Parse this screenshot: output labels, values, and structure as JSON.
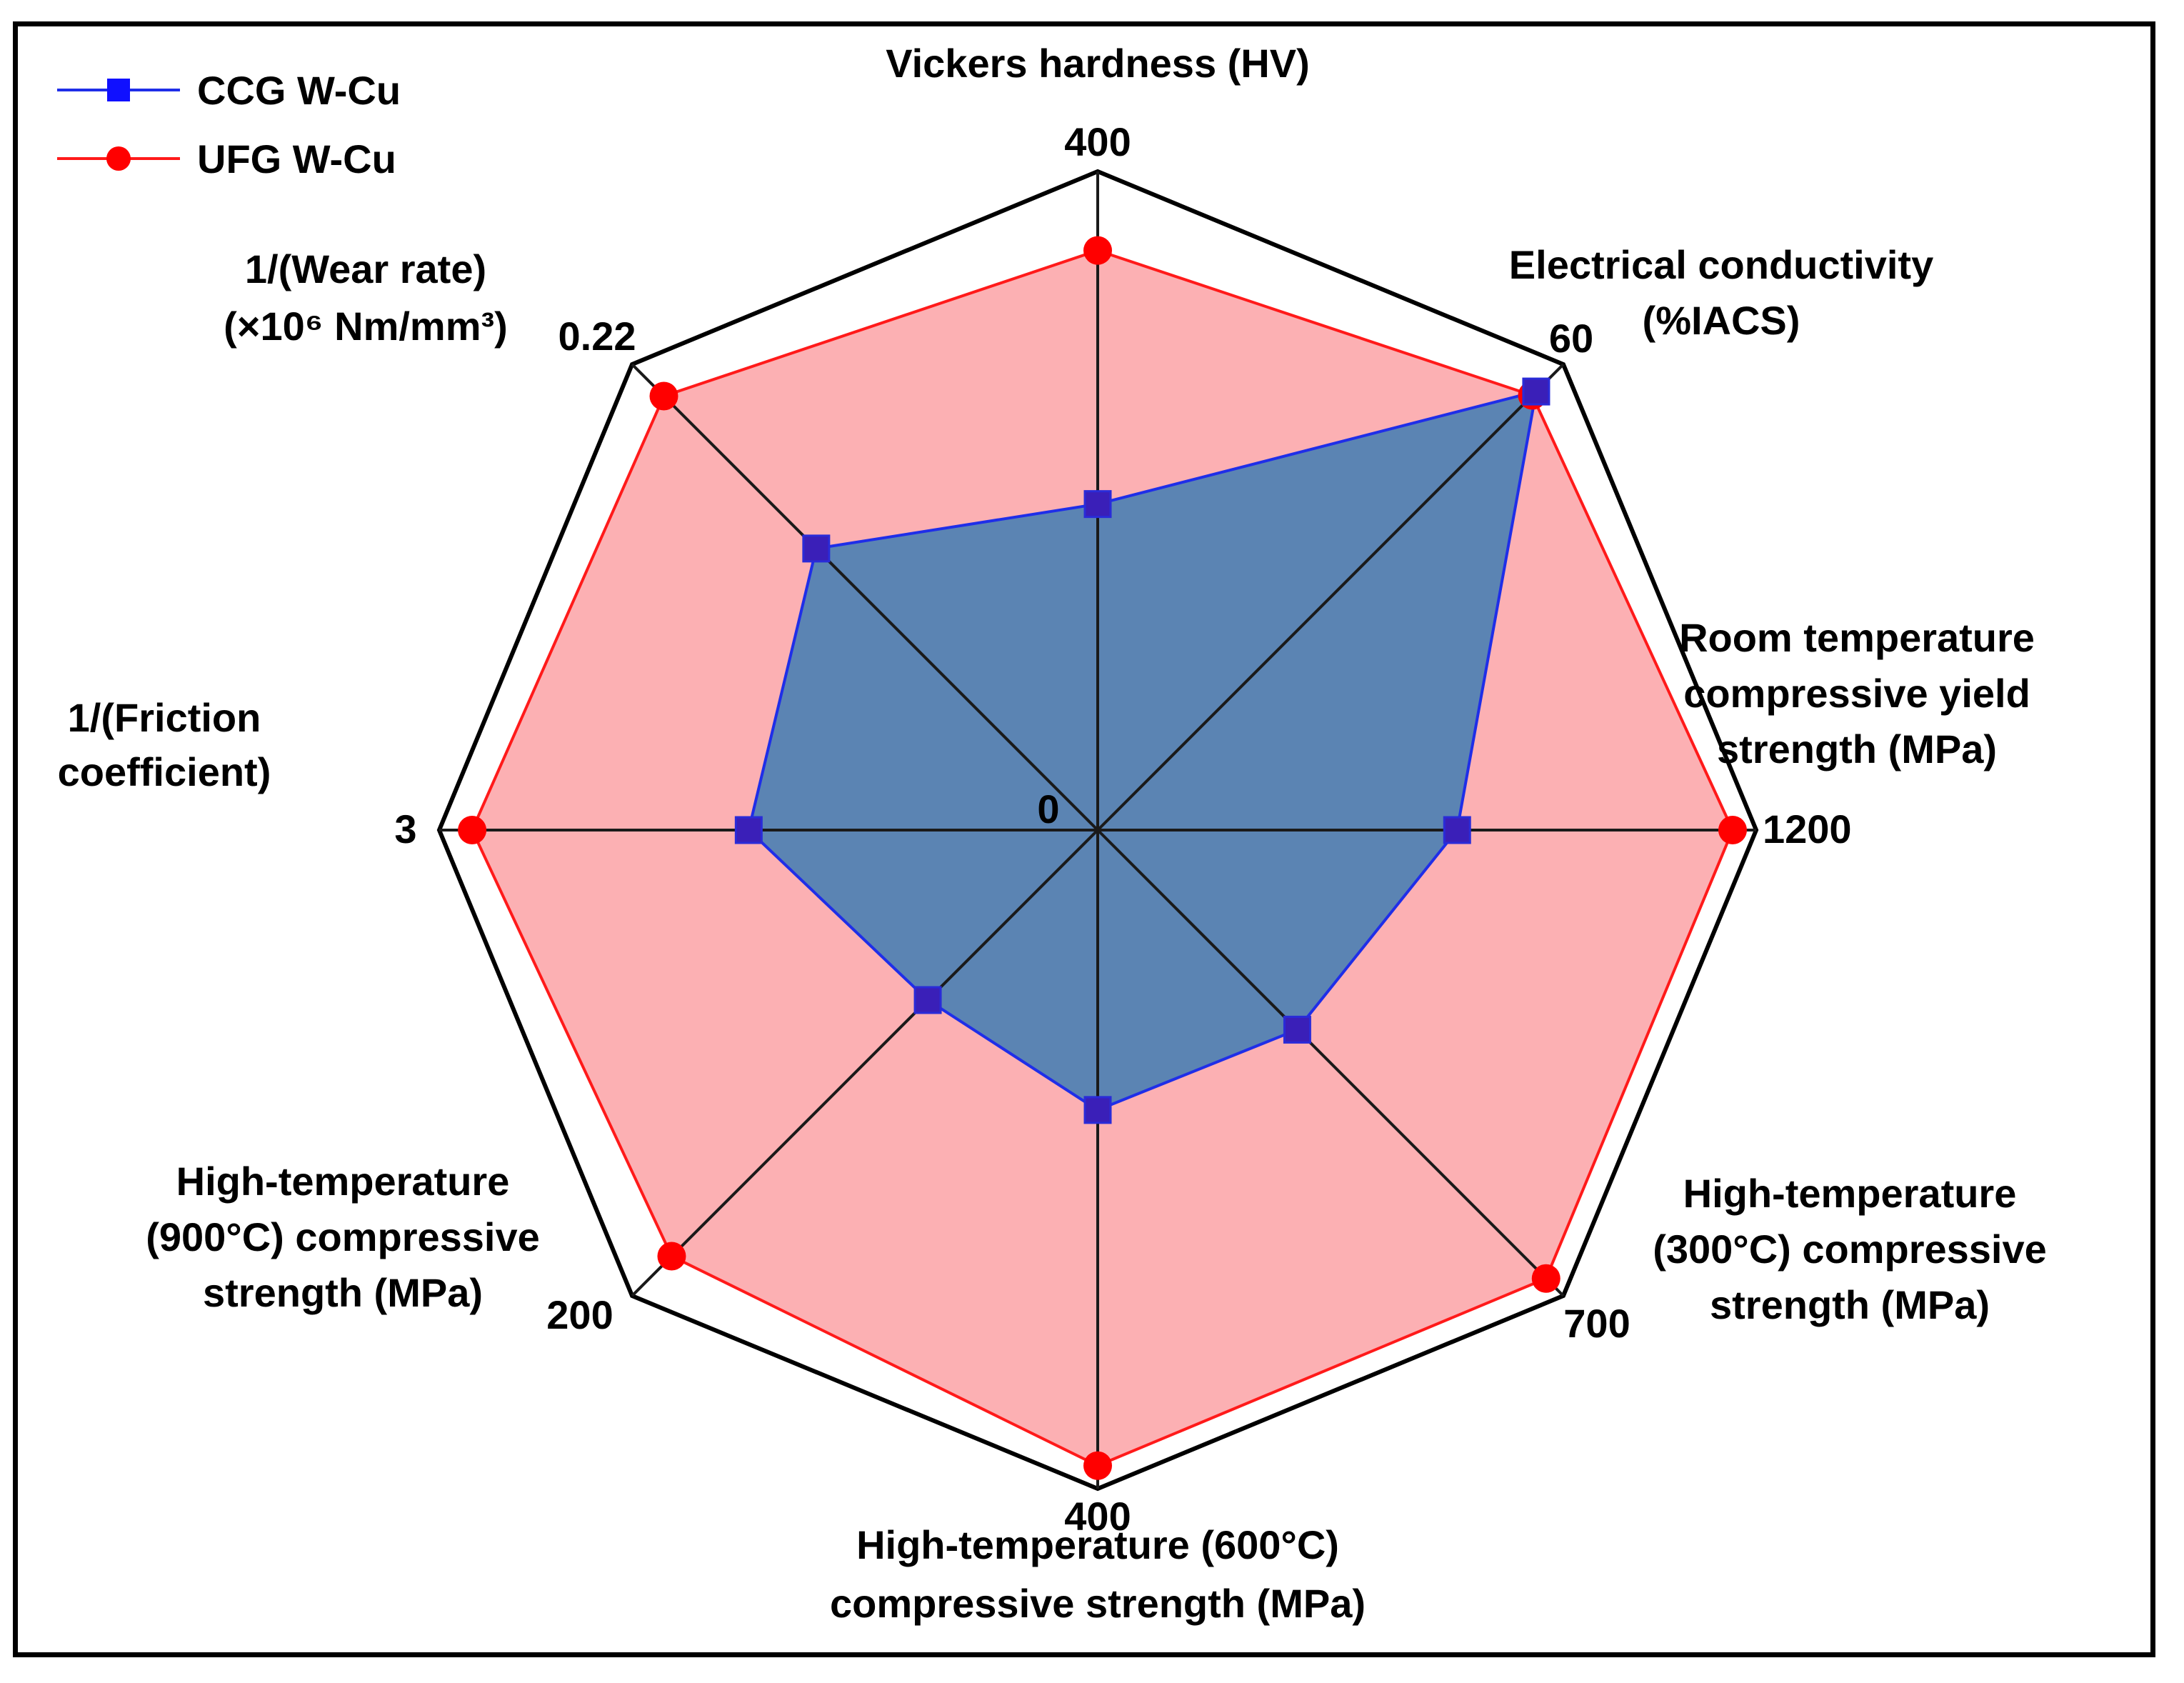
{
  "chart_data": {
    "type": "radar",
    "axes": [
      {
        "label": [
          "Vickers hardness (HV)"
        ],
        "max_label": "400",
        "max": 400
      },
      {
        "label": [
          "Electrical conductivity",
          "(%IACS)"
        ],
        "max_label": "60",
        "max": 60
      },
      {
        "label": [
          "Room temperature",
          "compressive yield",
          "strength (MPa)"
        ],
        "max_label": "1200",
        "max": 1200
      },
      {
        "label": [
          "High-temperature",
          "(300°C) compressive",
          "strength (MPa)"
        ],
        "max_label": "700",
        "max": 700
      },
      {
        "label": [
          "High-temperature (600°C)",
          "compressive strength (MPa)"
        ],
        "max_label": "400",
        "max": 400
      },
      {
        "label": [
          "High-temperature",
          "(900°C) compressive",
          "strength (MPa)"
        ],
        "max_label": "200",
        "max": 200
      },
      {
        "label": [
          "1/(Friction",
          "coefficient)"
        ],
        "max_label": "3",
        "max": 3
      },
      {
        "label": [
          "1/(Wear rate)",
          "(×10⁶ Nm/mm³)"
        ],
        "max_label": "0.22",
        "max": 0.22
      }
    ],
    "center_label": "0",
    "series": [
      {
        "name": "CCG W-Cu",
        "color": "#1f2ee8",
        "fill": "#5b84b3",
        "marker": "square",
        "values": [
          198,
          56.5,
          655,
          300,
          170,
          73,
          1.59,
          0.133
        ]
      },
      {
        "name": "UFG W-Cu",
        "color": "#ff1a1a",
        "fill": "#fcb0b3",
        "marker": "circle",
        "values": [
          352,
          56,
          1157,
          674,
          386,
          183,
          2.85,
          0.205
        ]
      }
    ]
  }
}
